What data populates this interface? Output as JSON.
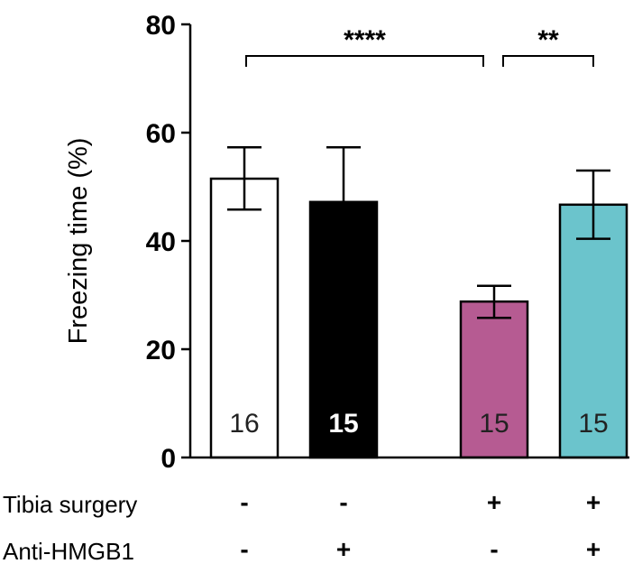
{
  "chart_data": {
    "type": "bar",
    "ylabel": "Freezing time (%)",
    "ylim": [
      0,
      80
    ],
    "yticks": [
      "0",
      "20",
      "40",
      "60",
      "80"
    ],
    "grid": false,
    "series": [
      {
        "values": [
          51.5,
          47.2,
          28.8,
          46.7
        ],
        "error_upper": [
          57.3,
          57.3,
          31.7,
          53.0
        ],
        "error_lower": [
          45.8,
          null,
          25.8,
          40.4
        ],
        "n_labels": [
          "16",
          "15",
          "15",
          "15"
        ],
        "colors": [
          "#ffffff",
          "#000000",
          "#b65b92",
          "#6bc4cc"
        ],
        "label_colors": [
          "#222222",
          "#ffffff",
          "#222222",
          "#222222"
        ]
      }
    ],
    "significance": [
      {
        "from": 0,
        "to": 2,
        "label": "****",
        "y": 74
      },
      {
        "from": 2,
        "to": 3,
        "label": "**",
        "y": 74
      }
    ],
    "conditions": [
      {
        "label": "Tibia surgery",
        "signs": [
          "-",
          "-",
          "+",
          "+"
        ]
      },
      {
        "label": "Anti-HMGB1",
        "signs": [
          "-",
          "+",
          "-",
          "+"
        ]
      }
    ]
  }
}
